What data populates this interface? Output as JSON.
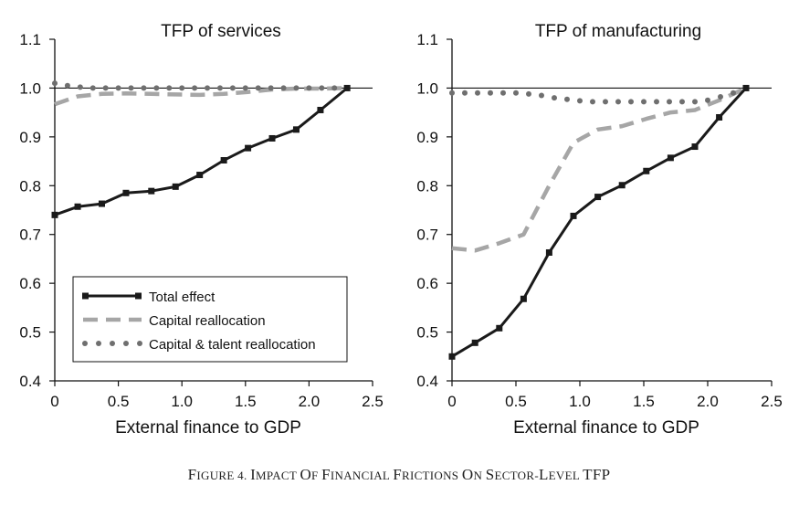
{
  "caption": {
    "prefix": "F",
    "rest": "IGURE 4. ",
    "words": [
      {
        "first": "I",
        "rest": "MPACT "
      },
      {
        "first": "O",
        "rest": "F "
      },
      {
        "first": "F",
        "rest": "INANCIAL "
      },
      {
        "first": "F",
        "rest": "RICTIONS "
      },
      {
        "first": "O",
        "rest": "N "
      },
      {
        "first": "S",
        "rest": "ECTOR-"
      },
      {
        "first": "L",
        "rest": "EVEL "
      },
      {
        "first": "TFP",
        "rest": ""
      }
    ]
  },
  "colors": {
    "total": "#1a1a1a",
    "capital": "#a6a6a6",
    "talent": "#6f6f6f"
  },
  "legend": {
    "items": [
      {
        "label": "Total effect",
        "style": "solid-square"
      },
      {
        "label": "Capital reallocation",
        "style": "dashed"
      },
      {
        "label": "Capital & talent reallocation",
        "style": "dotted"
      }
    ]
  },
  "chart_data": [
    {
      "type": "line",
      "title": "TFP of services",
      "xlabel": "External finance to GDP",
      "ylabel": "",
      "xlim": [
        0,
        2.5
      ],
      "ylim": [
        0.4,
        1.1
      ],
      "xticks": [
        "0",
        "0.5",
        "1.0",
        "1.5",
        "2.0",
        "2.5"
      ],
      "xtick_values": [
        0,
        0.5,
        1.0,
        1.5,
        2.0,
        2.5
      ],
      "yticks": [
        "0.4",
        "0.5",
        "0.6",
        "0.7",
        "0.8",
        "0.9",
        "1.0",
        "1.1"
      ],
      "ytick_values": [
        0.4,
        0.5,
        0.6,
        0.7,
        0.8,
        0.9,
        1.0,
        1.1
      ],
      "reference_line": 1.0,
      "legend_position": "bottom-left",
      "series": [
        {
          "name": "Total effect",
          "x": [
            0,
            0.18,
            0.37,
            0.56,
            0.76,
            0.95,
            1.14,
            1.33,
            1.52,
            1.71,
            1.9,
            2.09,
            2.3
          ],
          "y": [
            0.74,
            0.757,
            0.763,
            0.785,
            0.789,
            0.798,
            0.822,
            0.852,
            0.877,
            0.897,
            0.915,
            0.955,
            1.0
          ]
        },
        {
          "name": "Capital reallocation",
          "x": [
            0,
            0.18,
            0.37,
            0.56,
            0.76,
            0.95,
            1.14,
            1.33,
            1.52,
            1.71,
            1.9,
            2.09,
            2.3
          ],
          "y": [
            0.967,
            0.983,
            0.988,
            0.989,
            0.988,
            0.987,
            0.986,
            0.988,
            0.992,
            0.997,
            0.999,
            0.999,
            1.0
          ]
        },
        {
          "name": "Capital & talent reallocation",
          "x": [
            0,
            0.1,
            0.2,
            0.3,
            0.4,
            0.5,
            0.6,
            0.7,
            0.8,
            0.9,
            1.0,
            1.1,
            1.2,
            1.3,
            1.4,
            1.5,
            1.6,
            1.7,
            1.8,
            1.9,
            2.0,
            2.1,
            2.2,
            2.3
          ],
          "y": [
            1.01,
            1.005,
            1.002,
            1.0,
            1.0,
            1.0,
            1.0,
            1.0,
            1.0,
            1.0,
            1.0,
            1.0,
            1.0,
            1.0,
            1.0,
            1.0,
            1.0,
            1.0,
            1.0,
            1.0,
            1.0,
            1.0,
            1.0,
            1.0
          ]
        }
      ]
    },
    {
      "type": "line",
      "title": "TFP of manufacturing",
      "xlabel": "External finance to GDP",
      "ylabel": "",
      "xlim": [
        0,
        2.5
      ],
      "ylim": [
        0.4,
        1.1
      ],
      "xticks": [
        "0",
        "0.5",
        "1.0",
        "1.5",
        "2.0",
        "2.5"
      ],
      "xtick_values": [
        0,
        0.5,
        1.0,
        1.5,
        2.0,
        2.5
      ],
      "yticks": [
        "0.4",
        "0.5",
        "0.6",
        "0.7",
        "0.8",
        "0.9",
        "1.0",
        "1.1"
      ],
      "ytick_values": [
        0.4,
        0.5,
        0.6,
        0.7,
        0.8,
        0.9,
        1.0,
        1.1
      ],
      "reference_line": 1.0,
      "series": [
        {
          "name": "Total effect",
          "x": [
            0,
            0.18,
            0.37,
            0.56,
            0.76,
            0.95,
            1.14,
            1.33,
            1.52,
            1.71,
            1.9,
            2.09,
            2.3
          ],
          "y": [
            0.45,
            0.478,
            0.508,
            0.568,
            0.663,
            0.738,
            0.777,
            0.801,
            0.83,
            0.857,
            0.88,
            0.94,
            1.0
          ]
        },
        {
          "name": "Capital reallocation",
          "x": [
            0,
            0.18,
            0.37,
            0.56,
            0.76,
            0.95,
            1.14,
            1.33,
            1.52,
            1.71,
            1.9,
            2.09,
            2.3
          ],
          "y": [
            0.672,
            0.667,
            0.682,
            0.7,
            0.8,
            0.888,
            0.915,
            0.922,
            0.937,
            0.95,
            0.955,
            0.975,
            1.0
          ]
        },
        {
          "name": "Capital & talent reallocation",
          "x": [
            0,
            0.1,
            0.2,
            0.3,
            0.4,
            0.5,
            0.6,
            0.7,
            0.8,
            0.9,
            1.0,
            1.1,
            1.2,
            1.3,
            1.4,
            1.5,
            1.6,
            1.7,
            1.8,
            1.9,
            2.0,
            2.1,
            2.2,
            2.3
          ],
          "y": [
            0.99,
            0.99,
            0.99,
            0.99,
            0.99,
            0.99,
            0.988,
            0.985,
            0.98,
            0.977,
            0.974,
            0.972,
            0.972,
            0.972,
            0.972,
            0.972,
            0.972,
            0.972,
            0.972,
            0.972,
            0.975,
            0.982,
            0.99,
            1.0
          ]
        }
      ]
    }
  ]
}
